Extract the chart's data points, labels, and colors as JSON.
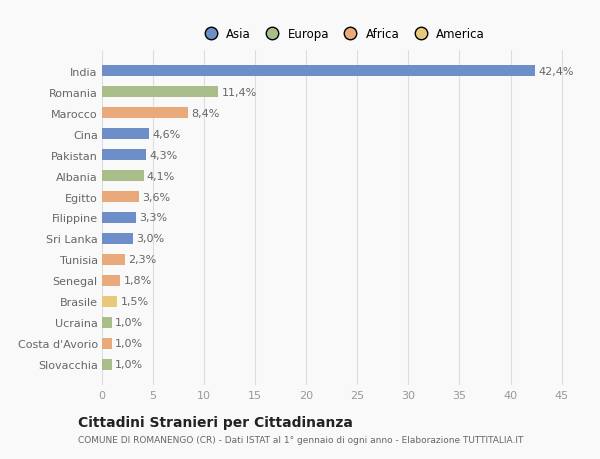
{
  "countries": [
    "India",
    "Romania",
    "Marocco",
    "Cina",
    "Pakistan",
    "Albania",
    "Egitto",
    "Filippine",
    "Sri Lanka",
    "Tunisia",
    "Senegal",
    "Brasile",
    "Ucraina",
    "Costa d'Avorio",
    "Slovacchia"
  ],
  "values": [
    42.4,
    11.4,
    8.4,
    4.6,
    4.3,
    4.1,
    3.6,
    3.3,
    3.0,
    2.3,
    1.8,
    1.5,
    1.0,
    1.0,
    1.0
  ],
  "labels": [
    "42,4%",
    "11,4%",
    "8,4%",
    "4,6%",
    "4,3%",
    "4,1%",
    "3,6%",
    "3,3%",
    "3,0%",
    "2,3%",
    "1,8%",
    "1,5%",
    "1,0%",
    "1,0%",
    "1,0%"
  ],
  "colors": [
    "#6e8ec9",
    "#a9bd8b",
    "#e9a97a",
    "#6e8ec9",
    "#6e8ec9",
    "#a9bd8b",
    "#e9a97a",
    "#6e8ec9",
    "#6e8ec9",
    "#e9a97a",
    "#e9a97a",
    "#e8c87a",
    "#a9bd8b",
    "#e9a97a",
    "#a9bd8b"
  ],
  "legend_labels": [
    "Asia",
    "Europa",
    "Africa",
    "America"
  ],
  "legend_colors": [
    "#6e8ec9",
    "#a9bd8b",
    "#e9a97a",
    "#e8c87a"
  ],
  "title": "Cittadini Stranieri per Cittadinanza",
  "subtitle": "COMUNE DI ROMANENGO (CR) - Dati ISTAT al 1° gennaio di ogni anno - Elaborazione TUTTITALIA.IT",
  "xlim": [
    0,
    47
  ],
  "xticks": [
    0,
    5,
    10,
    15,
    20,
    25,
    30,
    35,
    40,
    45
  ],
  "background_color": "#f9f9f9",
  "grid_color": "#dddddd",
  "bar_height": 0.55,
  "label_fontsize": 8,
  "ytick_fontsize": 8,
  "xtick_fontsize": 8
}
